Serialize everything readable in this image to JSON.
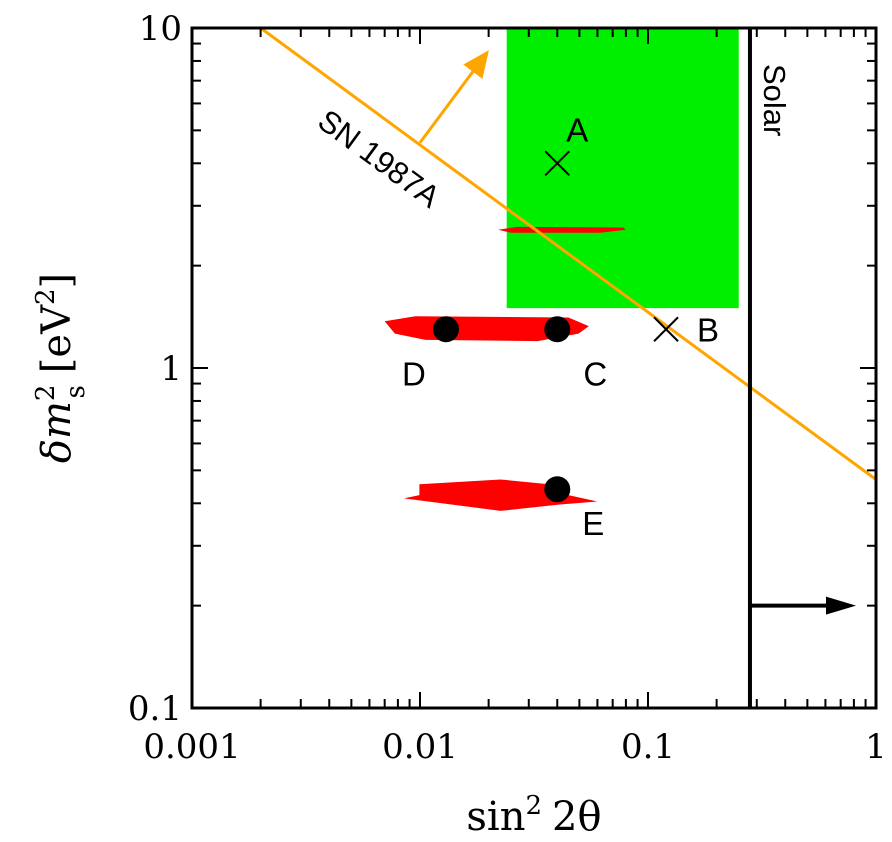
{
  "chart_data": {
    "type": "scatter",
    "xscale": "log",
    "yscale": "log",
    "xlim": [
      0.001,
      1
    ],
    "ylim": [
      0.1,
      10
    ],
    "xlabel": "sin² 2θ",
    "ylabel": "δm²s [eV²]",
    "xlabel_parts": {
      "func": "sin",
      "power": "2",
      "arg": "2θ"
    },
    "ylabel_parts": {
      "delta": "δ",
      "m": "m",
      "sub": "s",
      "sup": "2",
      "unit": "[eV",
      "unit_sup": "2",
      "unit_end": "]"
    },
    "x_ticks": [
      {
        "value": 0.001,
        "label": "0.001"
      },
      {
        "value": 0.01,
        "label": "0.01"
      },
      {
        "value": 0.1,
        "label": "0.1"
      },
      {
        "value": 1,
        "label": "1"
      }
    ],
    "y_ticks": [
      {
        "value": 0.1,
        "label": "0.1"
      },
      {
        "value": 1,
        "label": "1"
      },
      {
        "value": 10,
        "label": "10"
      }
    ],
    "points": [
      {
        "label": "A",
        "x": 0.04,
        "y": 4.0,
        "marker": "cross"
      },
      {
        "label": "B",
        "x": 0.12,
        "y": 1.3,
        "marker": "cross"
      },
      {
        "label": "C",
        "x": 0.04,
        "y": 1.3,
        "marker": "dot"
      },
      {
        "label": "D",
        "x": 0.013,
        "y": 1.3,
        "marker": "dot"
      },
      {
        "label": "E",
        "x": 0.04,
        "y": 0.44,
        "marker": "dot"
      }
    ],
    "regions": [
      {
        "name": "green-box",
        "color": "#00ee00",
        "x": [
          0.024,
          0.25
        ],
        "y": [
          1.5,
          10
        ]
      },
      {
        "name": "red-region-upper",
        "color": "#ff0000",
        "x": [
          0.022,
          0.08
        ],
        "y": [
          2.5,
          2.6
        ]
      },
      {
        "name": "red-region-middle",
        "color": "#ff0000",
        "x": [
          0.007,
          0.055
        ],
        "y": [
          1.2,
          1.42
        ]
      },
      {
        "name": "red-region-lower",
        "color": "#ff0000",
        "x": [
          0.0085,
          0.06
        ],
        "y": [
          0.38,
          0.47
        ]
      }
    ],
    "sn_line": {
      "label": "SN 1987A",
      "color": "#ffa500",
      "x": [
        0.002,
        1
      ],
      "y": [
        10,
        0.47
      ]
    },
    "solar_line": {
      "label": "Solar",
      "color": "#000000",
      "x": 0.28
    }
  }
}
